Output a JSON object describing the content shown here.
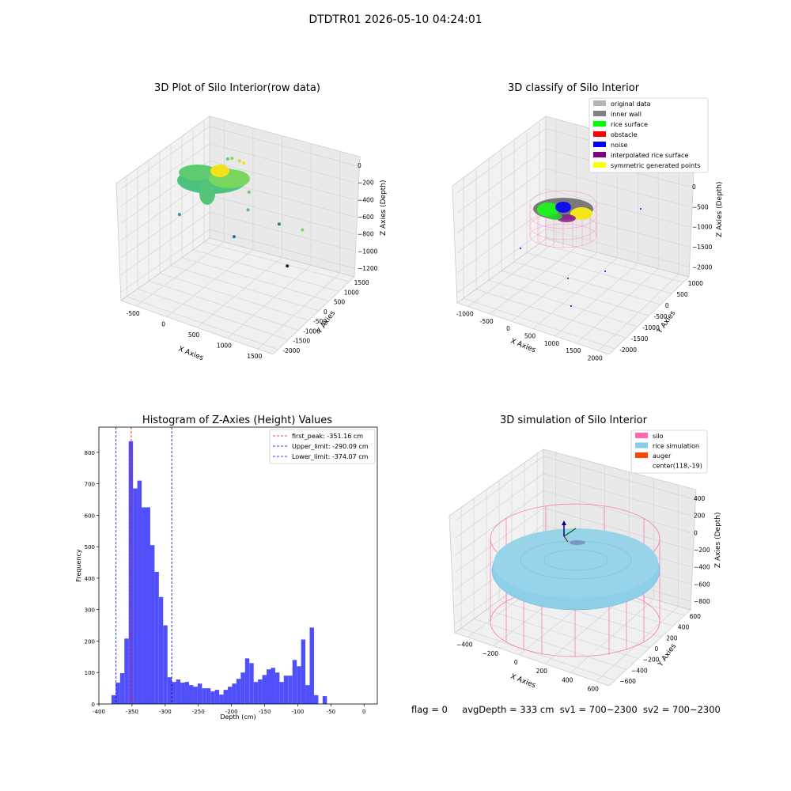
{
  "suptitle": "DTDTR01 2026-05-10 04:24:01",
  "chart_data": [
    {
      "type": "scatter",
      "panel": "top-left",
      "title": "3D Plot of Silo Interior(row data)",
      "xlabel": "X Axies",
      "ylabel": "Y Axies",
      "zlabel": "Z Axies (Depth)",
      "x_ticks": [
        "-500",
        "0",
        "500",
        "1000",
        "1500"
      ],
      "y_ticks": [
        "-2000",
        "-1500",
        "-1000",
        "-500",
        "0",
        "500",
        "1000",
        "1500"
      ],
      "z_ticks": [
        "0",
        "−200",
        "−400",
        "−600",
        "−800",
        "−1000",
        "−1200"
      ],
      "xlim": [
        -600,
        1700
      ],
      "ylim": [
        -2100,
        1700
      ],
      "zlim": [
        -1300,
        50
      ],
      "grid": true,
      "points": [
        {
          "x": -150,
          "y": 1200,
          "z": -200,
          "color": "#5fc87a"
        },
        {
          "x": -50,
          "y": 1100,
          "z": -150,
          "color": "#8fd45a"
        },
        {
          "x": 100,
          "y": 1000,
          "z": -120,
          "color": "#c6e03a"
        },
        {
          "x": 200,
          "y": 900,
          "z": -100,
          "color": "#f2e31a"
        },
        {
          "x": 350,
          "y": 700,
          "z": -350,
          "color": "#6ecb73"
        },
        {
          "x": 300,
          "y": 800,
          "z": -580,
          "color": "#4cc081"
        },
        {
          "x": 1300,
          "y": 300,
          "z": -450,
          "color": "#7fd06a"
        },
        {
          "x": -350,
          "y": -300,
          "z": -600,
          "color": "#3f8fa8"
        },
        {
          "x": 900,
          "y": -1500,
          "z": -300,
          "color": "#2f6b8e"
        },
        {
          "x": 1300,
          "y": -700,
          "z": -200,
          "color": "#2c7a8c"
        },
        {
          "x": 1600,
          "y": -1200,
          "z": -500,
          "color": "#3a0c52"
        }
      ]
    },
    {
      "type": "scatter",
      "panel": "top-right",
      "title": "3D classify of Silo Interior",
      "xlabel": "X Axies",
      "ylabel": "Y Axies",
      "zlabel": "Z Axies (Depth)",
      "x_ticks": [
        "-1000",
        "-500",
        "0",
        "500",
        "1000",
        "1500",
        "2000"
      ],
      "y_ticks": [
        "-2000",
        "-1500",
        "-1000",
        "-500",
        "0",
        "500",
        "1000"
      ],
      "z_ticks": [
        "500",
        "0",
        "−500",
        "−1000",
        "−1500",
        "−2000"
      ],
      "legend": {
        "position": "top-right",
        "entries": [
          {
            "label": "original data",
            "color": "#b3b3b3"
          },
          {
            "label": "inner wall",
            "color": "#808080"
          },
          {
            "label": "rice surface",
            "color": "#00ff00"
          },
          {
            "label": "obstacle",
            "color": "#ff0000"
          },
          {
            "label": "noise",
            "color": "#0000ff"
          },
          {
            "label": "interpolated rice surface",
            "color": "#800080"
          },
          {
            "label": "symmetric generated points",
            "color": "#ffff00"
          }
        ]
      },
      "grid": true
    },
    {
      "type": "bar",
      "panel": "bottom-left",
      "title": "Histogram of Z-Axies (Height) Values",
      "xlabel": "Depth (cm)",
      "ylabel": "Frequency",
      "xlim": [
        -400,
        20
      ],
      "ylim": [
        0,
        880
      ],
      "x_ticks": [
        -400,
        -350,
        -300,
        -250,
        -200,
        -150,
        -100,
        -50,
        0
      ],
      "y_ticks": [
        0,
        100,
        200,
        300,
        400,
        500,
        600,
        700,
        800
      ],
      "bin_width": 6.5,
      "bin_start": -381,
      "values": [
        28,
        68,
        98,
        208,
        835,
        685,
        710,
        625,
        625,
        505,
        420,
        340,
        250,
        85,
        70,
        78,
        68,
        70,
        60,
        55,
        65,
        50,
        50,
        40,
        45,
        30,
        45,
        55,
        65,
        80,
        100,
        145,
        130,
        70,
        78,
        92,
        110,
        115,
        100,
        70,
        90,
        90,
        140,
        120,
        205,
        60,
        243,
        28,
        0,
        25
      ],
      "bar_color": "#5050fa",
      "lines": [
        {
          "label": "first_peak: -351.16 cm",
          "x": -351.16,
          "color": "#ff0000"
        },
        {
          "label": "Upper_limit: -290.09 cm",
          "x": -290.09,
          "color": "#0000cc"
        },
        {
          "label": "Lower_limit: -374.07 cm",
          "x": -374.07,
          "color": "#0000cc"
        }
      ],
      "legend": {
        "position": "top-right"
      }
    },
    {
      "type": "surface",
      "panel": "bottom-right",
      "title": "3D simulation of Silo Interior",
      "xlabel": "X Axies",
      "ylabel": "Y Axies",
      "zlabel": "Z Axies (Depth)",
      "x_ticks": [
        "−400",
        "−200",
        "0",
        "200",
        "400",
        "600"
      ],
      "y_ticks": [
        "−600",
        "−400",
        "−200",
        "0",
        "200",
        "400",
        "600"
      ],
      "z_ticks": [
        "400",
        "200",
        "0",
        "−200",
        "−400",
        "−600",
        "−800"
      ],
      "legend": {
        "position": "top-right",
        "entries": [
          {
            "label": "silo",
            "color": "#ff69b4"
          },
          {
            "label": "rice simulation",
            "color": "#87ceeb"
          },
          {
            "label": "auger",
            "color": "#ff4500"
          },
          {
            "label": "center(118,-19)",
            "color": "none"
          }
        ]
      },
      "grid": true
    }
  ],
  "footer": {
    "flag": "flag = 0",
    "avg_depth": "avgDepth = 333 cm",
    "sv1": "sv1 = 700~2300",
    "sv2": "sv2 = 700~2300"
  }
}
